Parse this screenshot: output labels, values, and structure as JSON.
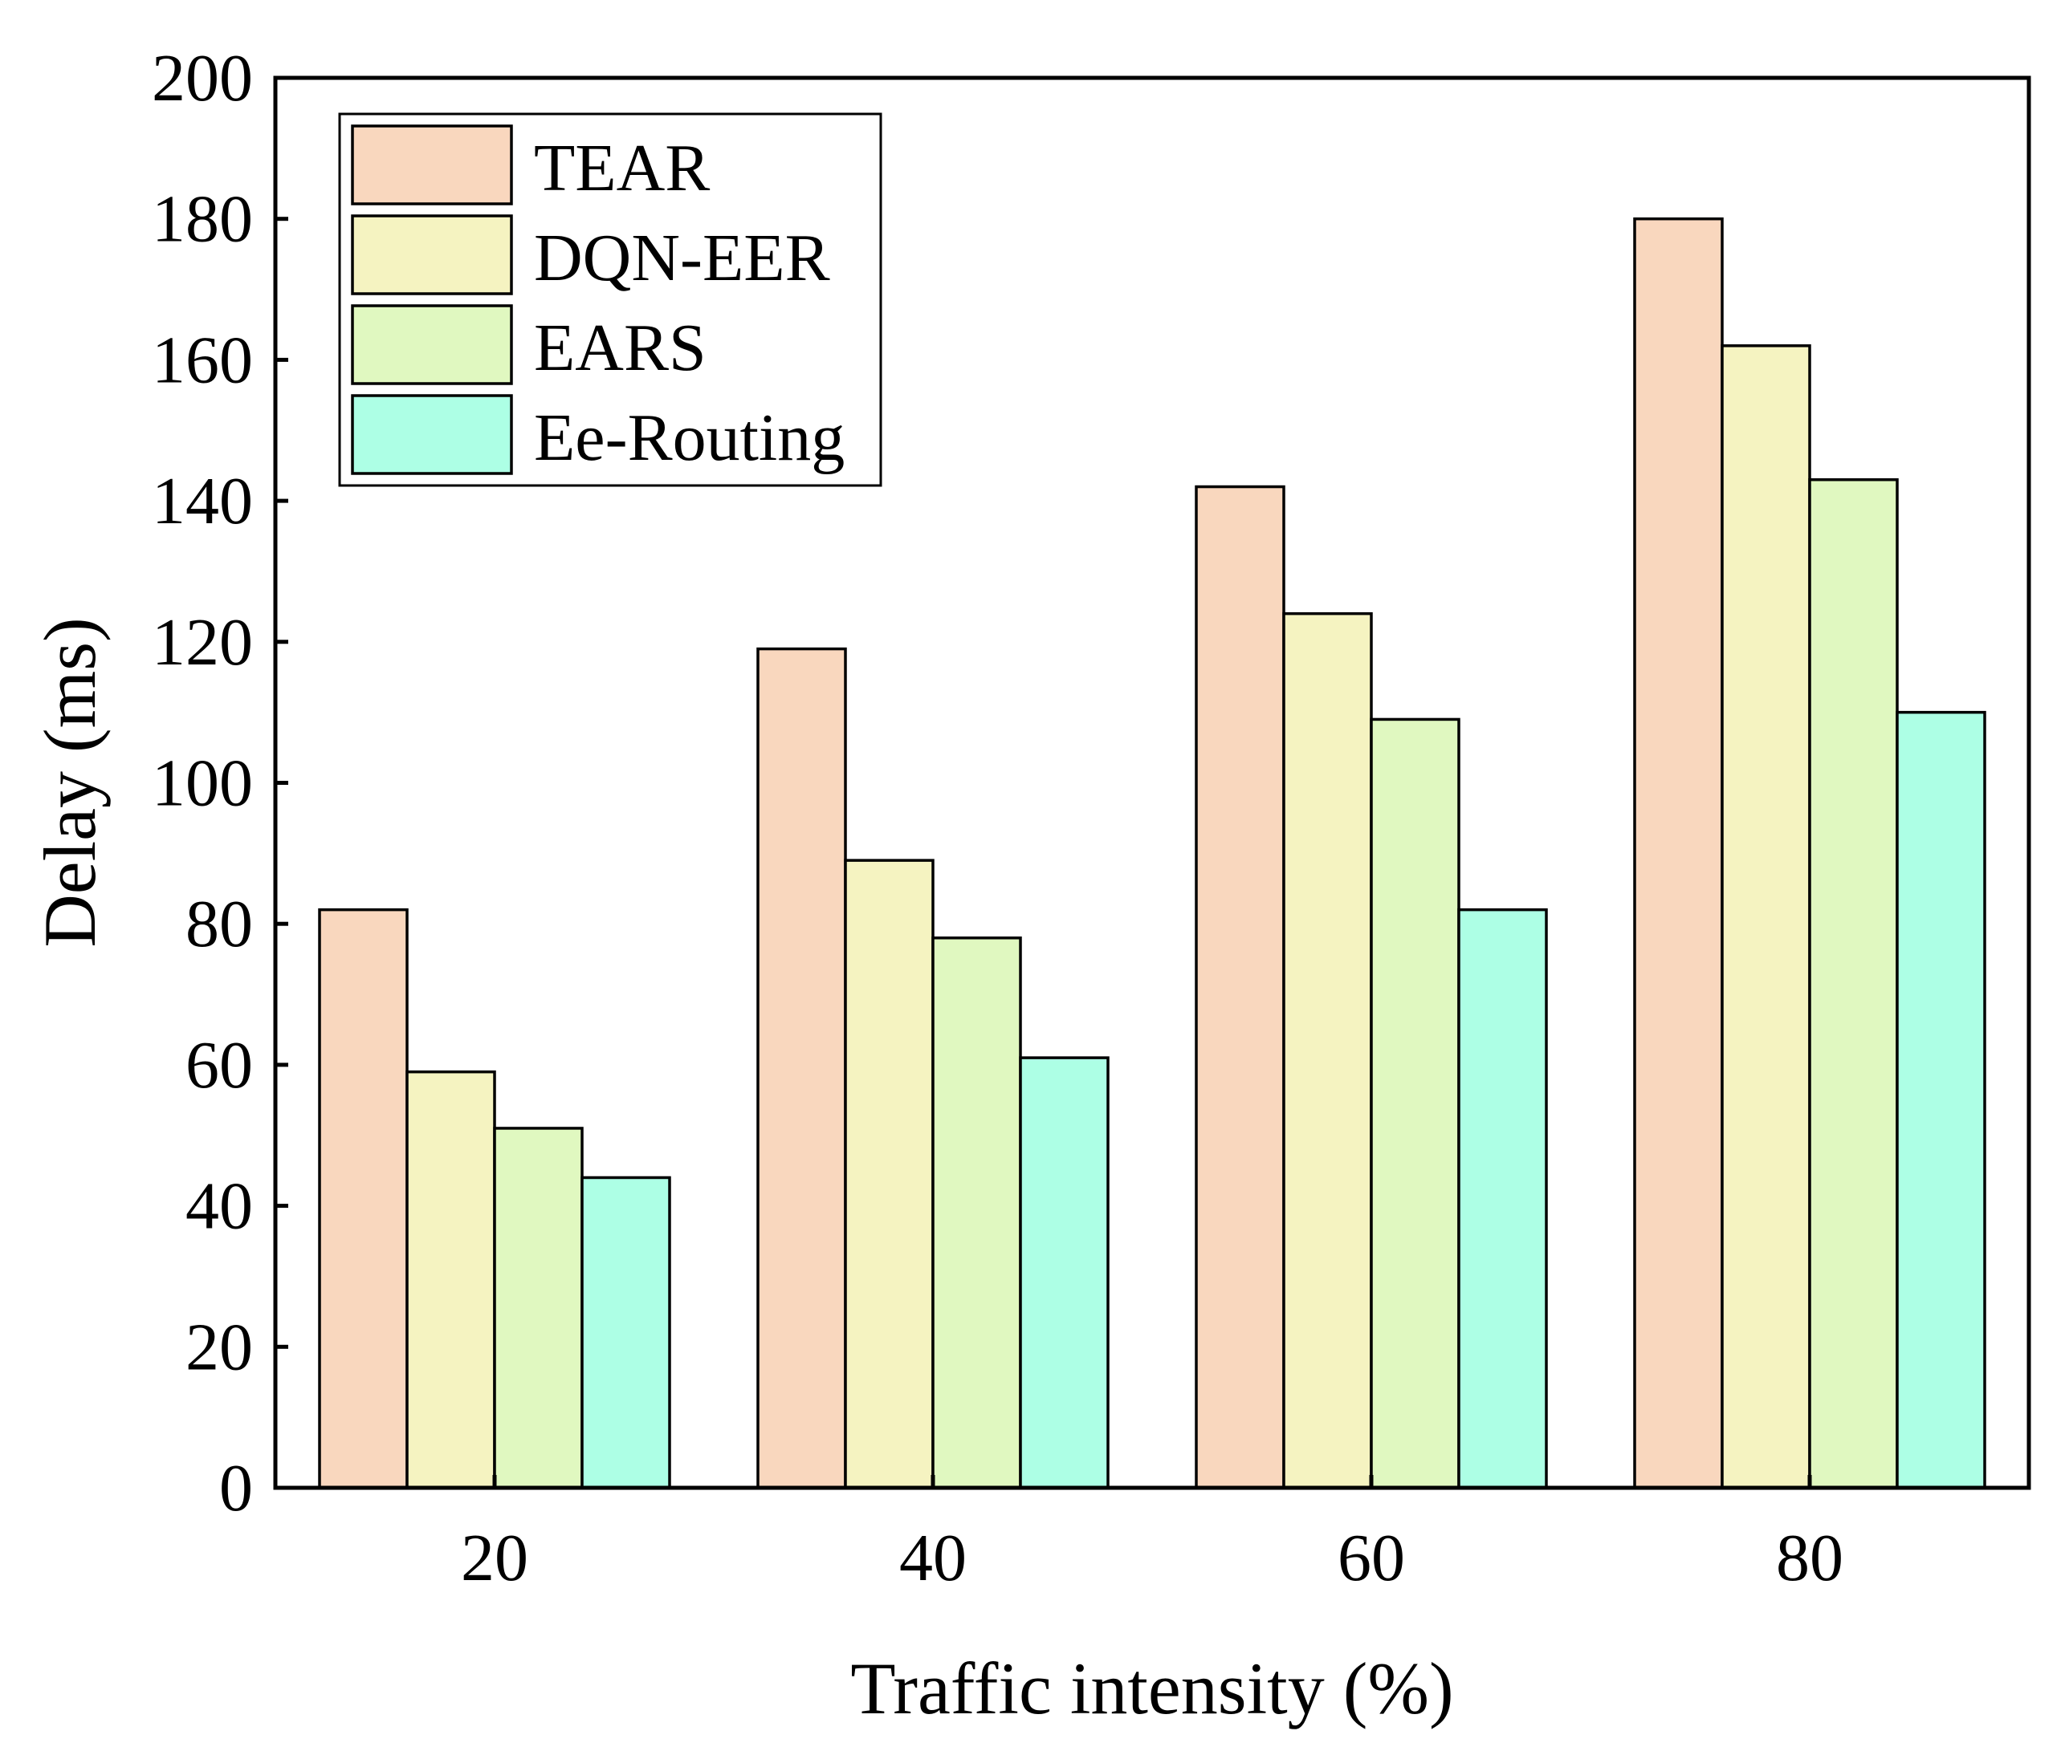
{
  "chart_data": {
    "type": "bar",
    "title": "",
    "xlabel": "Traffic intensity (%)",
    "ylabel": "Delay (ms)",
    "categories": [
      "20",
      "40",
      "60",
      "80"
    ],
    "ylim": [
      0,
      200
    ],
    "yticks": [
      0,
      20,
      40,
      60,
      80,
      100,
      120,
      140,
      160,
      180,
      200
    ],
    "ytick_labels": [
      "0",
      "20",
      "40",
      "60",
      "80",
      "100",
      "120",
      "140",
      "160",
      "180",
      "200"
    ],
    "grid": false,
    "legend_position": "top-left",
    "series": [
      {
        "name": "TEAR",
        "color": "#F9D7BE",
        "values": [
          82,
          119,
          142,
          180
        ]
      },
      {
        "name": "DQN-EER",
        "color": "#F5F3C1",
        "values": [
          59,
          89,
          124,
          162
        ]
      },
      {
        "name": "EARS",
        "color": "#E0F8C0",
        "values": [
          51,
          78,
          109,
          143
        ]
      },
      {
        "name": "Ee-Routing",
        "color": "#ADFFE5",
        "values": [
          44,
          61,
          82,
          110
        ]
      }
    ]
  }
}
